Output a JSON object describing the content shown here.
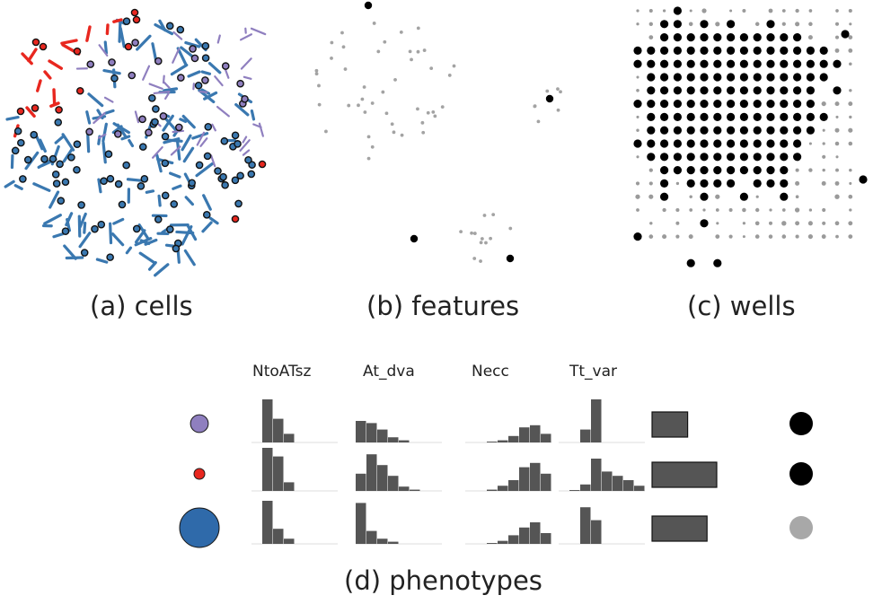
{
  "captions": {
    "cells": "(a) cells",
    "features": "(b) features",
    "wells": "(c) wells",
    "phenotypes": "(d) phenotypes"
  },
  "colors": {
    "purple": "#8f7fbf",
    "red": "#e8271f",
    "blue": "#2f6aaa",
    "gray_bar": "#555555",
    "black": "#000000",
    "light_gray": "#a8a8a8",
    "feature_gray": "#a3a3a3",
    "scatter_blue": "#3a78b0"
  },
  "phenotypes": {
    "columns": [
      "NtoATsz",
      "At_dva",
      "Necc",
      "Tt_var"
    ],
    "rows": [
      {
        "color": "purple",
        "size_rel": 0.45,
        "histograms": [
          [
            0,
            1.0,
            0.55,
            0.2,
            0,
            0,
            0,
            0
          ],
          [
            0.5,
            0.45,
            0.3,
            0.12,
            0.05,
            0,
            0,
            0
          ],
          [
            0,
            0,
            0.02,
            0.05,
            0.15,
            0.35,
            0.4,
            0.2
          ],
          [
            0,
            0,
            0.3,
            1.0,
            0,
            0,
            0,
            0
          ]
        ],
        "bar_value": 0.55,
        "indicator": "black"
      },
      {
        "color": "red",
        "size_rel": 0.25,
        "histograms": [
          [
            0,
            1.0,
            0.8,
            0.2,
            0,
            0,
            0,
            0
          ],
          [
            0.4,
            0.85,
            0.6,
            0.35,
            0.1,
            0.03,
            0,
            0
          ],
          [
            0,
            0,
            0.03,
            0.12,
            0.25,
            0.55,
            0.65,
            0.4
          ],
          [
            0,
            0.02,
            0.15,
            0.75,
            0.45,
            0.35,
            0.25,
            0.12
          ]
        ],
        "bar_value": 1.0,
        "indicator": "black"
      },
      {
        "color": "blue",
        "size_rel": 1.0,
        "histograms": [
          [
            0,
            1.0,
            0.35,
            0.12,
            0,
            0,
            0,
            0
          ],
          [
            0.95,
            0.3,
            0.12,
            0.05,
            0,
            0,
            0,
            0
          ],
          [
            0,
            0,
            0.02,
            0.07,
            0.2,
            0.38,
            0.5,
            0.25
          ],
          [
            0,
            0,
            0.85,
            0.55,
            0,
            0,
            0,
            0
          ]
        ],
        "bar_value": 0.85,
        "indicator": "light_gray"
      }
    ]
  }
}
